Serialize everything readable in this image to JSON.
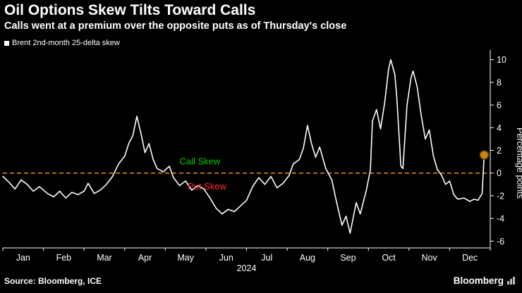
{
  "header": {
    "title": "Oil Options Skew Tilts Toward Calls",
    "subtitle": "Calls went at a premium over the opposite puts as of Thursday's close"
  },
  "legend": {
    "label": "Brent 2nd-month 25-delta skew",
    "swatch_color": "#ffffff"
  },
  "chart_data": {
    "type": "line",
    "title": "Brent 2nd-month 25-delta skew",
    "x_unit": "months since start of 2024 (0 = Jan 1, 12 = Dec 31)",
    "x": [
      0.0,
      0.15,
      0.3,
      0.45,
      0.6,
      0.75,
      0.9,
      1.1,
      1.25,
      1.4,
      1.55,
      1.7,
      1.85,
      2.0,
      2.1,
      2.25,
      2.4,
      2.55,
      2.7,
      2.85,
      3.0,
      3.1,
      3.2,
      3.3,
      3.4,
      3.5,
      3.6,
      3.7,
      3.8,
      3.95,
      4.1,
      4.2,
      4.35,
      4.5,
      4.65,
      4.8,
      4.95,
      5.1,
      5.25,
      5.4,
      5.55,
      5.7,
      5.85,
      6.0,
      6.15,
      6.3,
      6.45,
      6.6,
      6.75,
      6.9,
      7.05,
      7.15,
      7.3,
      7.4,
      7.5,
      7.6,
      7.7,
      7.8,
      7.95,
      8.1,
      8.2,
      8.35,
      8.45,
      8.55,
      8.7,
      8.8,
      8.95,
      9.05,
      9.1,
      9.2,
      9.3,
      9.4,
      9.5,
      9.55,
      9.65,
      9.7,
      9.8,
      9.85,
      9.95,
      10.05,
      10.1,
      10.2,
      10.3,
      10.4,
      10.5,
      10.6,
      10.7,
      10.8,
      10.9,
      11.0,
      11.1,
      11.2,
      11.35,
      11.5,
      11.6,
      11.7,
      11.8,
      11.85
    ],
    "values": [
      -0.3,
      -0.8,
      -1.4,
      -0.6,
      -1.0,
      -1.6,
      -1.2,
      -1.8,
      -2.1,
      -1.6,
      -2.2,
      -1.7,
      -1.9,
      -1.6,
      -0.9,
      -1.8,
      -1.5,
      -1.0,
      -0.3,
      0.8,
      1.5,
      2.6,
      3.3,
      5.0,
      3.5,
      1.8,
      2.6,
      1.2,
      0.4,
      0.1,
      0.6,
      -0.4,
      -1.1,
      -0.7,
      -1.5,
      -1.1,
      -1.4,
      -2.2,
      -3.1,
      -3.6,
      -3.2,
      -3.4,
      -2.9,
      -2.4,
      -1.2,
      -0.4,
      -1.0,
      -0.3,
      -1.3,
      -0.9,
      -0.2,
      0.8,
      1.2,
      2.2,
      4.2,
      2.6,
      1.4,
      2.3,
      0.4,
      -0.6,
      -2.3,
      -4.6,
      -3.8,
      -5.3,
      -2.6,
      -3.6,
      -1.5,
      0.3,
      4.6,
      5.6,
      3.9,
      6.2,
      9.2,
      10.0,
      8.7,
      6.6,
      0.6,
      0.4,
      6.0,
      8.4,
      9.0,
      7.6,
      5.1,
      3.0,
      3.8,
      1.5,
      0.3,
      -0.2,
      -1.0,
      -0.7,
      -1.9,
      -2.3,
      -2.2,
      -2.5,
      -2.3,
      -2.4,
      -1.8,
      1.6
    ],
    "xlabel": "2024",
    "ylabel": "Percentage points",
    "ylim": [
      -6,
      10
    ],
    "yticks": [
      10,
      8,
      6,
      4,
      2,
      0,
      -2,
      -4,
      -6
    ],
    "xticklabels": [
      "Jan",
      "Feb",
      "Mar",
      "Apr",
      "May",
      "Jun",
      "Jul",
      "Aug",
      "Sep",
      "Oct",
      "Nov",
      "Dec"
    ],
    "grid": false,
    "legend_position": "top-left",
    "line_color": "#ffffff",
    "zero_line": {
      "value": 0,
      "color": "#f28c1e",
      "style": "dashed"
    },
    "annotations": [
      {
        "text": "Call Skew",
        "color": "#00cc00",
        "x": 4.35,
        "y": 0.75
      },
      {
        "text": "Put Skew",
        "color": "#ff2d2d",
        "x": 4.55,
        "y": -1.45
      }
    ],
    "end_marker": {
      "x": 11.85,
      "y": 1.6,
      "color": "#c9860e",
      "ring_color": "#5f3f08"
    }
  },
  "footer": {
    "source": "Source: Bloomberg, ICE",
    "brand": "Bloomberg"
  }
}
